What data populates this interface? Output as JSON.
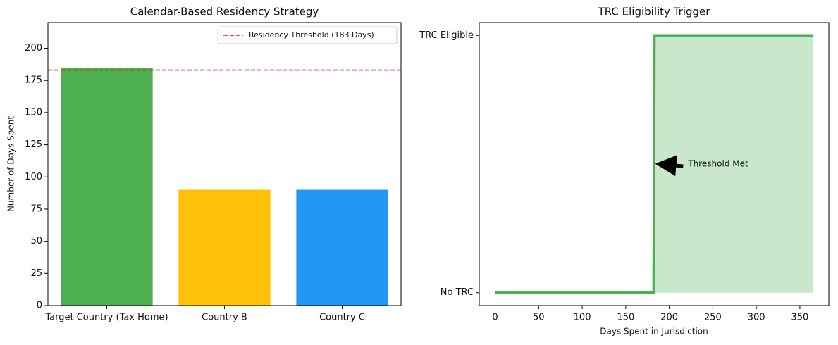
{
  "chart_data": [
    {
      "type": "bar",
      "title": "Calendar-Based Residency Strategy",
      "ylabel": "Number of Days Spent",
      "categories": [
        "Target Country (Tax Home)",
        "Country B",
        "Country C"
      ],
      "values": [
        185,
        90,
        90
      ],
      "colors": [
        "#4caf50",
        "#ffc107",
        "#2196f3"
      ],
      "ylim": [
        0,
        220
      ],
      "yticks": [
        0,
        25,
        50,
        75,
        100,
        125,
        150,
        175,
        200
      ],
      "hline": {
        "value": 183,
        "label": "Residency Threshold (183 Days)",
        "color": "#e11d1d"
      },
      "legend": "upper right"
    },
    {
      "type": "line",
      "title": "TRC Eligibility Trigger",
      "xlabel": "Days Spent in Jurisdiction",
      "x": [
        0,
        182,
        183,
        365
      ],
      "series": [
        {
          "color": "#4caf50",
          "values": [
            0,
            0,
            1,
            1
          ]
        }
      ],
      "fill": true,
      "xlim": [
        -18.25,
        383.25
      ],
      "xticks": [
        0,
        50,
        100,
        150,
        200,
        250,
        300,
        350
      ],
      "ylim": [
        -0.05,
        1.05
      ],
      "yticks": [
        {
          "value": 0,
          "label": "No TRC"
        },
        {
          "value": 1,
          "label": "TRC Eligible"
        }
      ],
      "annotation": {
        "text": "Threshold Met",
        "xy": [
          183,
          0.5
        ],
        "xytext": [
          220,
          0.5
        ]
      }
    }
  ]
}
